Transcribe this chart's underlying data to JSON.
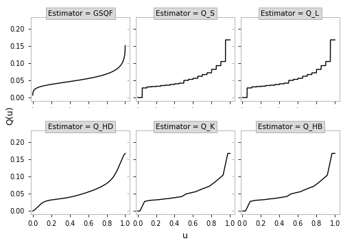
{
  "panel_titles": [
    "Estimator = GSQF",
    "Estimator = Q_S",
    "Estimator = Q_L",
    "Estimator = Q_HD",
    "Estimator = Q_K",
    "Estimator = Q_HB"
  ],
  "xlabel": "u",
  "ylabel": "Q(u)",
  "ylim": [
    -0.01,
    0.235
  ],
  "xlim": [
    -0.02,
    1.05
  ],
  "yticks": [
    0.0,
    0.05,
    0.1,
    0.15,
    0.2
  ],
  "xticks": [
    0.0,
    0.2,
    0.4,
    0.6,
    0.8,
    1.0
  ],
  "raw_data": [
    0.0,
    0.028,
    0.031,
    0.032,
    0.033,
    0.035,
    0.036,
    0.038,
    0.04,
    0.042,
    0.05,
    0.053,
    0.056,
    0.062,
    0.067,
    0.072,
    0.082,
    0.093,
    0.105,
    0.168
  ],
  "line_color": "#000000",
  "line_width": 1.0,
  "bg_color": "#ffffff",
  "panel_bg": "#ffffff",
  "strip_bg": "#d9d9d9",
  "strip_border": "#aaaaaa",
  "spine_color": "#aaaaaa",
  "title_fontsize": 7.5,
  "label_fontsize": 9,
  "tick_fontsize": 7
}
